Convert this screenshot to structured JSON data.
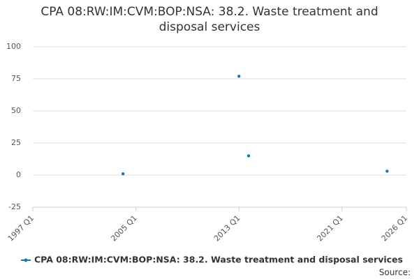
{
  "chart_data": {
    "type": "scatter",
    "title": "CPA 08:RW:IM:CVM:BOP:NSA: 38.2. Waste treatment and disposal services",
    "x": [
      "2004 Q1",
      "2013 Q1",
      "2013 Q4",
      "2024 Q3"
    ],
    "series": [
      {
        "name": "CPA 08:RW:IM:CVM:BOP:NSA: 38.2. Waste treatment and disposal services",
        "color": "#1a78b0",
        "values": [
          1,
          77,
          15,
          3
        ]
      }
    ],
    "xlim": [
      "1997 Q1",
      "2026 Q1"
    ],
    "xticks": [
      "1997 Q1",
      "2005 Q1",
      "2013 Q1",
      "2021 Q1",
      "2026 Q1"
    ],
    "ylim": [
      -25,
      100
    ],
    "yticks": [
      -25,
      0,
      25,
      50,
      75,
      100
    ],
    "grid": true,
    "legend": "bottom",
    "source": "Source:"
  }
}
